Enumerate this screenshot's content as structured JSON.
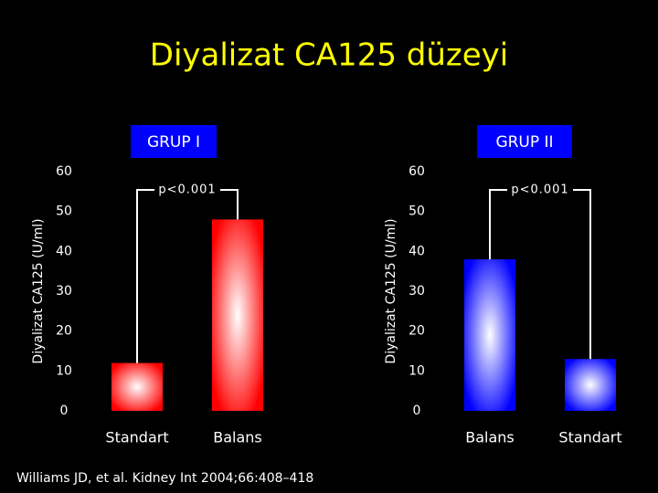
{
  "title": "Diyalizat CA125 düzeyi",
  "footnote": "Williams JD, et al. Kidney Int 2004;66:408–418",
  "chart_data": [
    {
      "type": "bar",
      "title": "GRUP I",
      "ylabel": "Diyalizat CA125 (U/ml)",
      "annotation": "p<0.001",
      "categories": [
        "Standart",
        "Balans"
      ],
      "values": [
        12,
        48
      ],
      "color": "#ff0000",
      "ylim": [
        0,
        60
      ],
      "yticks": [
        0,
        10,
        20,
        30,
        40,
        50,
        60
      ]
    },
    {
      "type": "bar",
      "title": "GRUP II",
      "ylabel": "Diyalizat CA125 (U/ml)",
      "annotation": "p<0.001",
      "categories": [
        "Balans",
        "Standart"
      ],
      "values": [
        38,
        13
      ],
      "color": "#0000ff",
      "ylim": [
        0,
        60
      ],
      "yticks": [
        0,
        10,
        20,
        30,
        40,
        50,
        60
      ]
    }
  ]
}
